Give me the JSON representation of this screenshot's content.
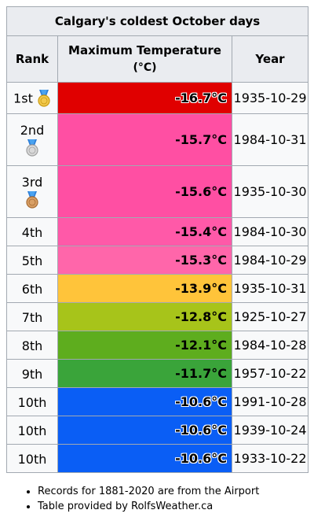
{
  "table": {
    "title": "Calgary's coldest October days",
    "headers": {
      "rank": "Rank",
      "max_temp": "Maximum Temperature",
      "max_temp_unit": "(°C)",
      "year": "Year"
    },
    "rows": [
      {
        "rank": "1st",
        "temp": "-16.7°C",
        "date": "1935-10-29",
        "color": "#e00000",
        "medal": "gold-medal-icon"
      },
      {
        "rank": "2nd",
        "temp": "-15.7°C",
        "date": "1984-10-31",
        "color": "#ff4fa3",
        "medal": "silver-medal-icon"
      },
      {
        "rank": "3rd",
        "temp": "-15.6°C",
        "date": "1935-10-30",
        "color": "#ff4fa3",
        "medal": "bronze-medal-icon"
      },
      {
        "rank": "4th",
        "temp": "-15.4°C",
        "date": "1984-10-30",
        "color": "#ff59a8",
        "medal": ""
      },
      {
        "rank": "5th",
        "temp": "-15.3°C",
        "date": "1984-10-29",
        "color": "#ff66aa",
        "medal": ""
      },
      {
        "rank": "6th",
        "temp": "-13.9°C",
        "date": "1935-10-31",
        "color": "#ffc43a",
        "medal": ""
      },
      {
        "rank": "7th",
        "temp": "-12.8°C",
        "date": "1925-10-27",
        "color": "#a7c41a",
        "medal": ""
      },
      {
        "rank": "8th",
        "temp": "-12.1°C",
        "date": "1984-10-28",
        "color": "#5ead1e",
        "medal": ""
      },
      {
        "rank": "9th",
        "temp": "-11.7°C",
        "date": "1957-10-22",
        "color": "#3aa43a",
        "medal": ""
      },
      {
        "rank": "10th",
        "temp": "-10.6°C",
        "date": "1991-10-28",
        "color": "#0a5ef5",
        "medal": ""
      },
      {
        "rank": "10th",
        "temp": "-10.6°C",
        "date": "1939-10-24",
        "color": "#0a5ef5",
        "medal": ""
      },
      {
        "rank": "10th",
        "temp": "-10.6°C",
        "date": "1933-10-22",
        "color": "#0a5ef5",
        "medal": ""
      }
    ]
  },
  "notes": [
    "Records for 1881-2020 are from the Airport",
    "Table provided by RolfsWeather.ca"
  ]
}
